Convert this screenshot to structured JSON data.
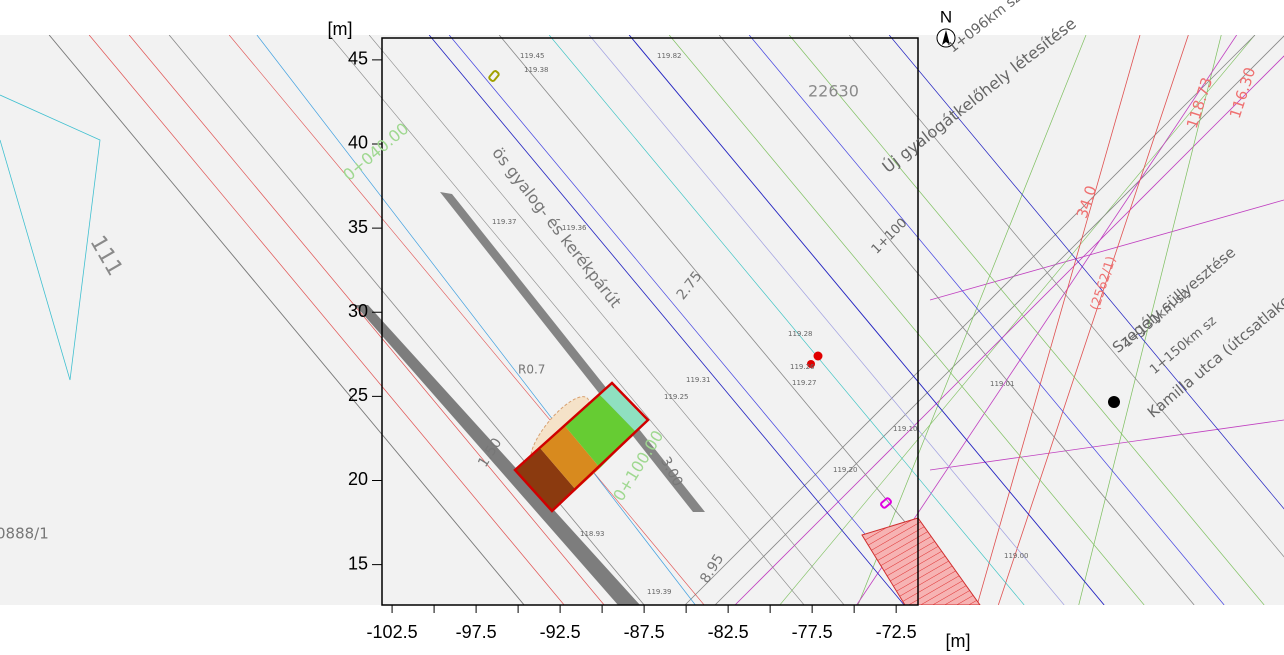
{
  "axes": {
    "x_unit": "[m]",
    "y_unit": "[m]",
    "xlim": [
      -103.1,
      -71.2
    ],
    "ylim": [
      12.6,
      46.3
    ],
    "xticks": [
      -102.5,
      -97.5,
      -92.5,
      -87.5,
      -82.5,
      -77.5,
      -72.5
    ],
    "xminor": [
      -100,
      -95,
      -90,
      -85,
      -80,
      -75
    ],
    "yticks": [
      15,
      20,
      25,
      30,
      35,
      40,
      45
    ]
  },
  "north": "N",
  "map_labels": [
    "22630",
    "111",
    "0888/1",
    "R0.7",
    "2.75",
    "3.00",
    "1.50",
    "8.95",
    "1+100",
    "0+100.00",
    "0+040.00",
    "ös gyalog- és kerékpárút",
    "Új gyalogátkelőhely létesítése",
    "1+096km sz",
    "Szegély süllyesztése",
    "1+131km sz",
    "Kamilla utca (útcsatlakozás)",
    "1+150km sz",
    "34.0",
    "118.73",
    "116.30",
    "(2562/1)",
    "119.45",
    "119.38",
    "119.82",
    "119.36",
    "119.37",
    "119.28",
    "119.26",
    "119.27",
    "119.31",
    "119.25",
    "119.10",
    "119.20",
    "119.01",
    "119.00",
    "118.93",
    "119.39"
  ]
}
